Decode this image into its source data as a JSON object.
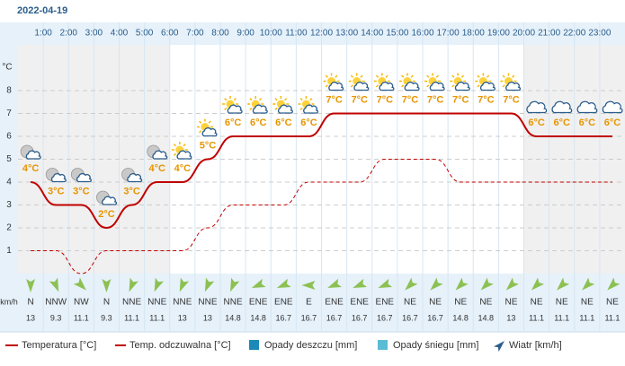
{
  "date": "2022-04-19",
  "chart_data": {
    "type": "line",
    "categories": [
      null,
      "1:00",
      "2:00",
      "3:00",
      "4:00",
      "5:00",
      "6:00",
      "7:00",
      "8:00",
      "9:00",
      "10:00",
      "11:00",
      "12:00",
      "13:00",
      "14:00",
      "15:00",
      "16:00",
      "17:00",
      "18:00",
      "19:00",
      "20:00",
      "21:00",
      "22:00",
      "23:00"
    ],
    "y_unit": "°C",
    "ylim": [
      0,
      10
    ],
    "yticks": [
      1,
      2,
      3,
      4,
      5,
      6,
      7,
      8
    ],
    "grid": true,
    "series": [
      {
        "name": "Temperatura [°C]",
        "color": "#c00000",
        "values": [
          4,
          3,
          3,
          2,
          3,
          4,
          4,
          5,
          6,
          6,
          6,
          6,
          7,
          7,
          7,
          7,
          7,
          7,
          7,
          7,
          6,
          6,
          6,
          6
        ],
        "value_labels": [
          "4°C",
          "3°C",
          "3°C",
          "2°C",
          "3°C",
          "4°C",
          "4°C",
          "5°C",
          "6°C",
          "6°C",
          "6°C",
          "6°C",
          "7°C",
          "7°C",
          "7°C",
          "7°C",
          "7°C",
          "7°C",
          "7°C",
          "7°C",
          "6°C",
          "6°C",
          "6°C",
          "6°C"
        ]
      },
      {
        "name": "Temp. odczuwalna [°C]",
        "color": "#c00000",
        "dashed": true,
        "values": [
          1,
          1,
          0,
          1,
          1,
          1,
          1,
          2,
          3,
          3,
          3,
          4,
          4,
          4,
          5,
          5,
          5,
          4,
          4,
          4,
          4,
          4,
          4,
          4
        ]
      }
    ],
    "wind": {
      "name": "Wiatr [km/h]",
      "unit": "km/h",
      "color": "#8cc152",
      "directions": [
        "N",
        "NNW",
        "NW",
        "N",
        "NNE",
        "NNE",
        "NNE",
        "NNE",
        "NNE",
        "ENE",
        "ENE",
        "E",
        "ENE",
        "ENE",
        "ENE",
        "NE",
        "NE",
        "NE",
        "NE",
        "NE",
        "NE",
        "NE",
        "NE",
        "NE"
      ],
      "speeds": [
        13,
        9.3,
        11.1,
        9.3,
        11.1,
        11.1,
        13,
        13,
        14.8,
        14.8,
        16.7,
        16.7,
        16.7,
        16.7,
        16.7,
        16.7,
        16.7,
        14.8,
        14.8,
        13,
        11.1,
        11.1,
        11.1,
        11.1
      ]
    },
    "legend_extra": [
      {
        "name": "Opady deszczu [mm]",
        "color": "#1b8ab8"
      },
      {
        "name": "Opady śniegu [mm]",
        "color": "#5bbcd6"
      }
    ]
  }
}
